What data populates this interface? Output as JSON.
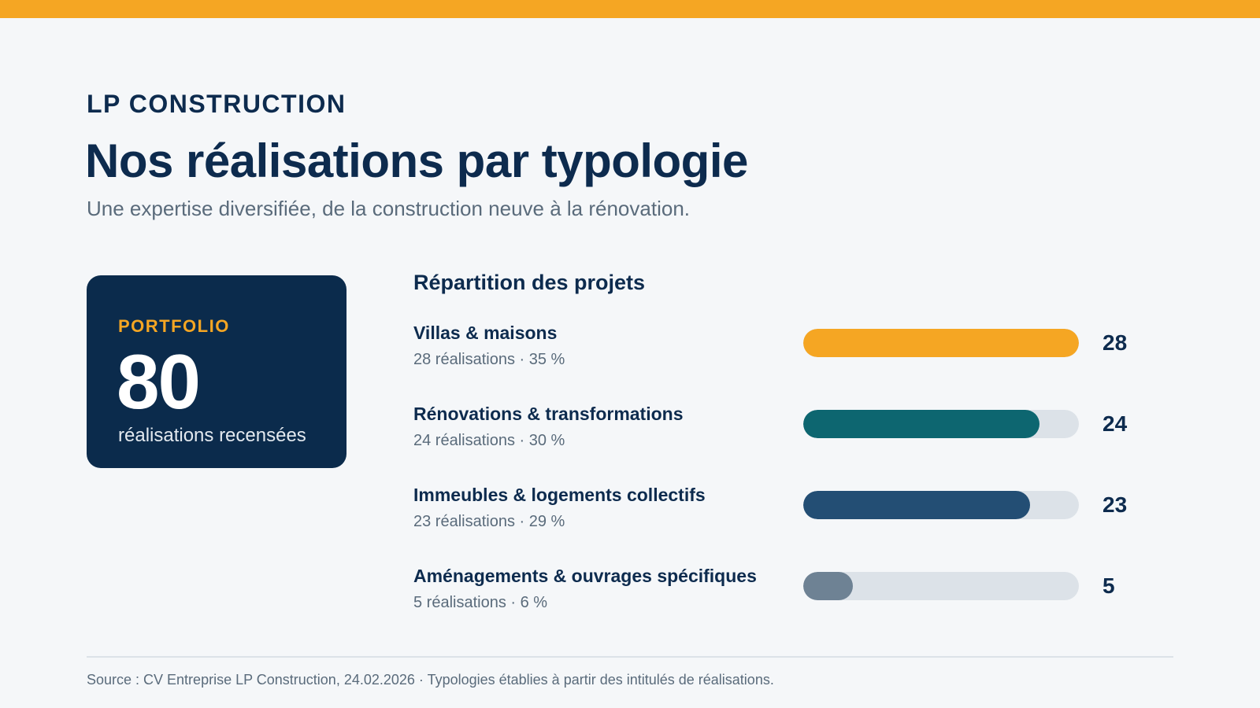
{
  "brand": "LP CONSTRUCTION",
  "title": "Nos réalisations par typologie",
  "subtitle": "Une expertise diversifiée, de la construction neuve à la rénovation.",
  "card": {
    "label": "PORTFOLIO",
    "value": "80",
    "caption": "réalisations recensées"
  },
  "colors": {
    "accent": "#F5A623",
    "navy": "#0B2B4C",
    "track": "#DCE2E8"
  },
  "chart_data": {
    "type": "bar",
    "orientation": "horizontal",
    "title": "Répartition des projets",
    "xlim": [
      0,
      28
    ],
    "categories": [
      "Villas & maisons",
      "Rénovations & transformations",
      "Immeubles & logements collectifs",
      "Aménagements & ouvrages spécifiques"
    ],
    "values": [
      28,
      24,
      23,
      5
    ],
    "details": [
      "28 réalisations · 35 %",
      "24 réalisations · 30 %",
      "23 réalisations · 29 %",
      "5 réalisations · 6 %"
    ],
    "value_labels": [
      "28",
      "24",
      "23",
      "5"
    ],
    "bar_colors": [
      "#F5A623",
      "#0D6670",
      "#234E74",
      "#6E8294"
    ]
  },
  "source": "Source : CV Entreprise LP Construction, 24.02.2026 · Typologies établies à partir des intitulés de réalisations."
}
